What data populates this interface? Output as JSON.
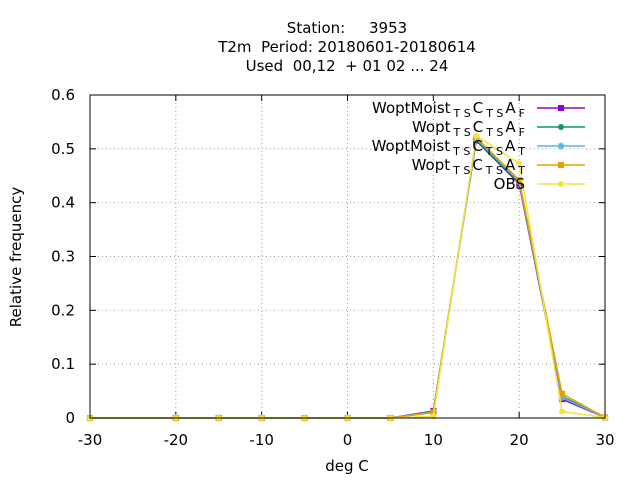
{
  "chart_data": {
    "type": "line",
    "title_lines": [
      "Station:     3953",
      "T2m  Period: 20180601-20180614",
      "Used  00,12  + 01 02 ... 24"
    ],
    "xlabel": "deg C",
    "ylabel": "Relative frequency",
    "xlim": [
      -30,
      30
    ],
    "ylim": [
      0,
      0.6
    ],
    "xticks": [
      -30,
      -20,
      -10,
      0,
      10,
      20,
      30
    ],
    "yticks": [
      0,
      0.1,
      0.2,
      0.3,
      0.4,
      0.5,
      0.6
    ],
    "grid": true,
    "legend_position": "top-right",
    "x": [
      -30,
      -20,
      -15,
      -10,
      -5,
      0,
      5,
      10,
      15,
      20,
      25,
      30
    ],
    "series": [
      {
        "label": [
          {
            "t": "WoptMoist"
          },
          {
            "t": "T S",
            "s": "sub"
          },
          {
            "t": "C"
          },
          {
            "t": "T S",
            "s": "sub"
          },
          {
            "t": "A"
          },
          {
            "t": "F",
            "s": "sub"
          }
        ],
        "color": "#9400d3",
        "marker": "square",
        "values": [
          0,
          0,
          0,
          0,
          0,
          0,
          0,
          0.013,
          0.515,
          0.435,
          0.035,
          0.001
        ]
      },
      {
        "label": [
          {
            "t": "Wopt"
          },
          {
            "t": "T S",
            "s": "sub"
          },
          {
            "t": "C"
          },
          {
            "t": "T S",
            "s": "sub"
          },
          {
            "t": "A"
          },
          {
            "t": "F",
            "s": "sub"
          }
        ],
        "color": "#009e73",
        "marker": "circle",
        "values": [
          0,
          0,
          0,
          0,
          0,
          0,
          0,
          0.012,
          0.517,
          0.438,
          0.04,
          0.001
        ]
      },
      {
        "label": [
          {
            "t": "WoptMoist"
          },
          {
            "t": "T S",
            "s": "sub"
          },
          {
            "t": "C"
          },
          {
            "t": "T S",
            "s": "sub"
          },
          {
            "t": "A"
          },
          {
            "t": "T",
            "s": "sub"
          }
        ],
        "color": "#56b4e9",
        "marker": "star",
        "values": [
          0,
          0,
          0,
          0,
          0,
          0,
          0,
          0.011,
          0.519,
          0.44,
          0.038,
          0.001
        ]
      },
      {
        "label": [
          {
            "t": "Wopt"
          },
          {
            "t": "T S",
            "s": "sub"
          },
          {
            "t": "C"
          },
          {
            "t": "T S",
            "s": "sub"
          },
          {
            "t": "A"
          },
          {
            "t": "T",
            "s": "sub"
          }
        ],
        "color": "#e69f00",
        "marker": "square",
        "values": [
          0,
          0,
          0,
          0,
          0,
          0,
          0,
          0.01,
          0.521,
          0.442,
          0.045,
          0.001
        ]
      },
      {
        "label": [
          {
            "t": "OBS"
          }
        ],
        "color": "#f0e442",
        "marker": "circle",
        "values": [
          0,
          0,
          0,
          0,
          0,
          0,
          0,
          0.003,
          0.524,
          0.473,
          0.012,
          0.001
        ]
      }
    ]
  }
}
